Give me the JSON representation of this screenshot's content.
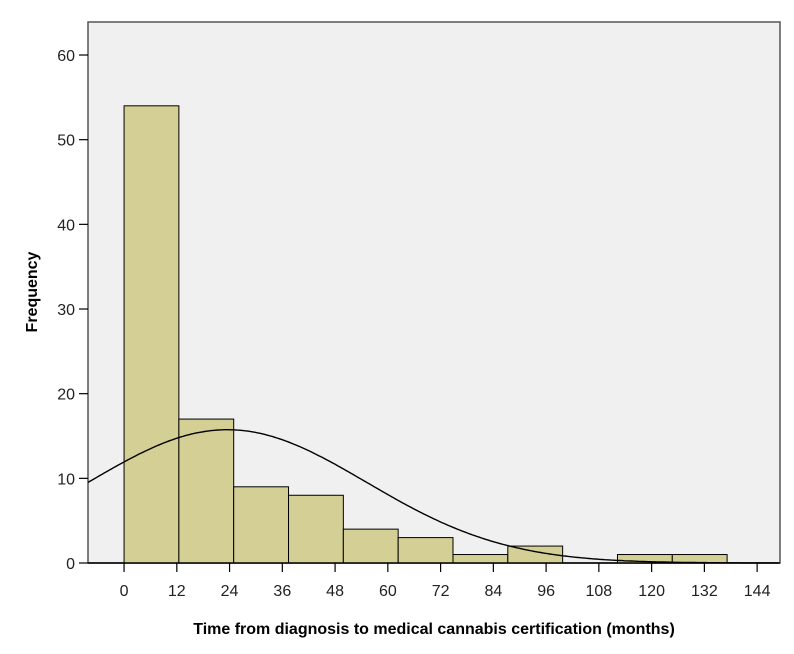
{
  "chart_data": {
    "type": "bar",
    "subtype": "histogram",
    "title": "",
    "xlabel": "Time from diagnosis to medical cannabis certification  (months)",
    "ylabel": "Frequency",
    "bin_start": 0,
    "bin_width": 12.47,
    "values": [
      54,
      17,
      9,
      8,
      4,
      3,
      1,
      2,
      0,
      1,
      1
    ],
    "xticks": [
      0,
      12,
      24,
      36,
      48,
      60,
      72,
      84,
      96,
      108,
      120,
      132,
      144
    ],
    "yticks": [
      0,
      10,
      20,
      30,
      40,
      50,
      60
    ],
    "xlim": [
      -8.2,
      149.2
    ],
    "ylim": [
      0,
      63.9
    ],
    "normal_curve": {
      "mean": 23.5,
      "sd": 31.6,
      "n": 100
    },
    "grid": false,
    "colors": {
      "bar": "#d4cf94",
      "plot_bg": "#f0f0f0",
      "stroke": "#000000"
    }
  }
}
